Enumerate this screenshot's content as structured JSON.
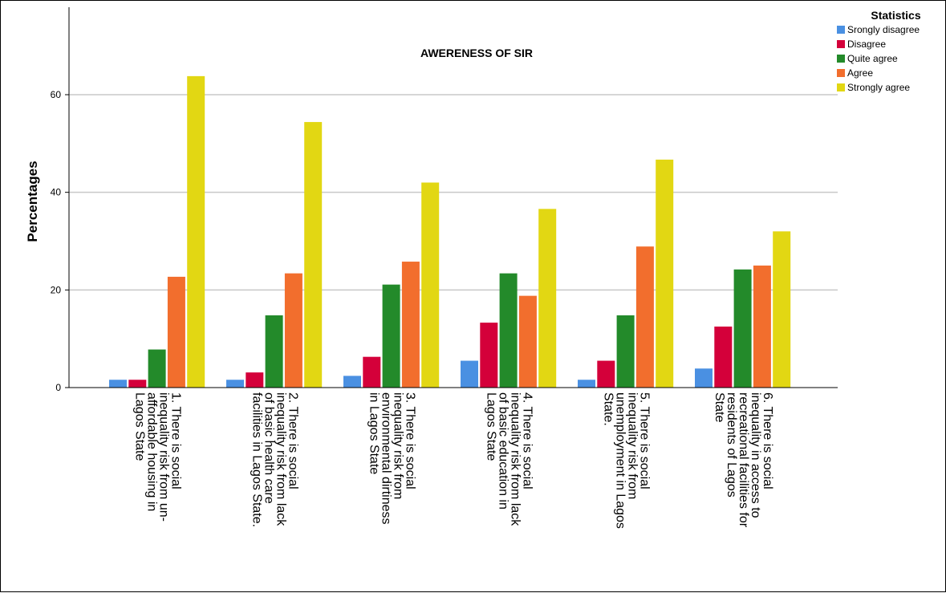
{
  "chart_data": {
    "type": "bar",
    "title": "AWERENESS OF SIR",
    "xlabel": "",
    "ylabel": "Percentages",
    "ylim": [
      0,
      75
    ],
    "yticks": [
      0,
      20,
      40,
      60
    ],
    "grid": true,
    "legend_position": "top-right",
    "legend_title": "Statistics",
    "categories": [
      [
        "1. There is social",
        "inequality risk from un-",
        "affordable housing in",
        "Lagos State"
      ],
      [
        "2. There is social",
        "inequality risk from lack",
        "of basic health care",
        "facilities in Lagos State."
      ],
      [
        "3. There is social",
        "inequality risk from",
        "environmental dirtiness",
        "in Lagos State"
      ],
      [
        "4. There is social",
        "inequality risk from lack",
        "of basic education in",
        "Lagos State"
      ],
      [
        "5. There is social",
        "inequality risk from",
        "unemployment in Lagos",
        "State."
      ],
      [
        "6. There is social",
        "inequality in access to",
        "recreational facilities for",
        "residents of Lagos",
        "State"
      ]
    ],
    "series": [
      {
        "name": "Srongly disagree",
        "color": "#4a90e2",
        "values": [
          1.6,
          1.6,
          2.4,
          5.5,
          1.6,
          3.9
        ]
      },
      {
        "name": "Disagree",
        "color": "#d4003a",
        "values": [
          1.6,
          3.1,
          6.3,
          13.3,
          5.5,
          12.5
        ]
      },
      {
        "name": "Quite agree",
        "color": "#238a2a",
        "values": [
          7.8,
          14.8,
          21.1,
          23.4,
          14.8,
          24.2
        ]
      },
      {
        "name": "Agree",
        "color": "#f26e2d",
        "values": [
          22.7,
          23.4,
          25.8,
          18.8,
          28.9,
          25.0
        ]
      },
      {
        "name": "Strongly agree",
        "color": "#e2d713",
        "values": [
          63.8,
          54.4,
          42.0,
          36.6,
          46.7,
          32.0
        ]
      }
    ]
  }
}
